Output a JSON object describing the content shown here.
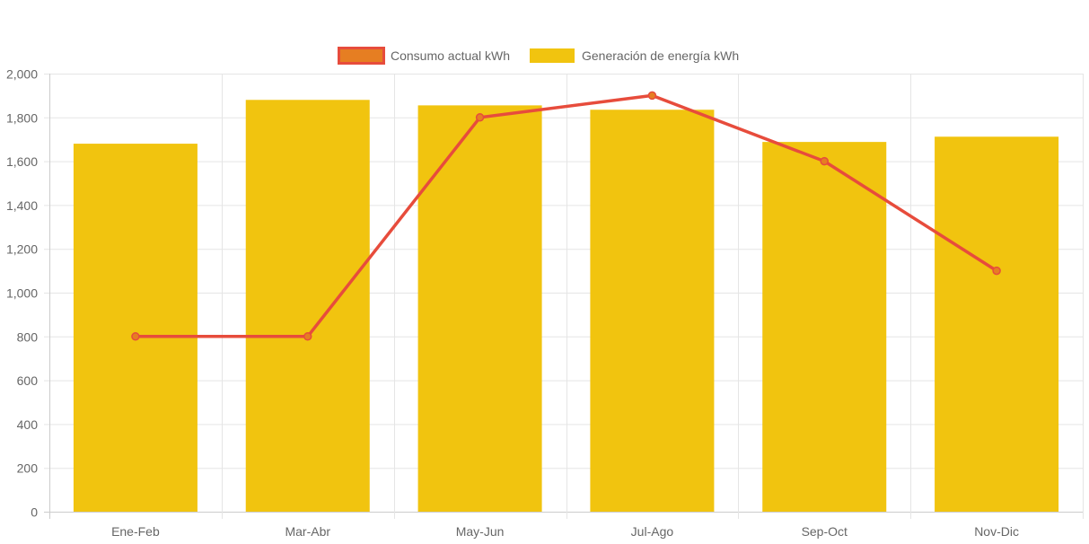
{
  "chart_data": {
    "type": "bar",
    "categories": [
      "Ene-Feb",
      "Mar-Abr",
      "May-Jun",
      "Jul-Ago",
      "Sep-Oct",
      "Nov-Dic"
    ],
    "series": [
      {
        "name": "Consumo actual kWh",
        "type": "line",
        "values": [
          800,
          800,
          1800,
          1900,
          1600,
          1100
        ],
        "color": "#e74c3c",
        "point_color": "#e67e22"
      },
      {
        "name": "Generación de energía kWh",
        "type": "bar",
        "values": [
          1680,
          1880,
          1855,
          1835,
          1688,
          1712
        ],
        "color": "#f1c40f"
      }
    ],
    "ylim": [
      0,
      2000
    ],
    "yticks": [
      "0",
      "200",
      "400",
      "600",
      "800",
      "1,000",
      "1,200",
      "1,400",
      "1,600",
      "1,800",
      "2,000"
    ],
    "grid": true,
    "legend_position": "top"
  }
}
